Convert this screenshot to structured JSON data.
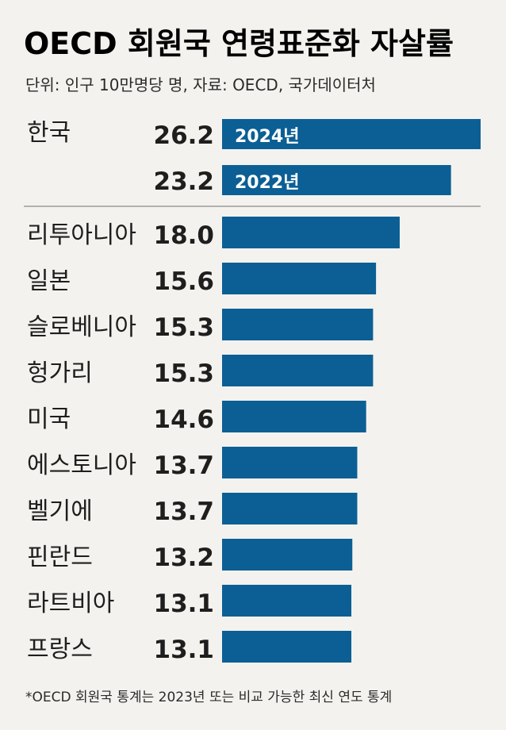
{
  "header": {
    "title": "OECD 회원국 연령표준화 자살률",
    "subtitle": "단위: 인구 10만명당 명, 자료: OECD, 국가데이터처"
  },
  "footnote": "*OECD 회원국 통계는 2023년 또는 비교 가능한 최신 연도 통계",
  "colors": {
    "bar": "#0b5f95",
    "background": "#f3f2ee",
    "divider": "#8a8a8a"
  },
  "chart_data": {
    "type": "bar",
    "orientation": "horizontal",
    "title": "OECD 회원국 연령표준화 자살률",
    "subtitle": "단위: 인구 10만명당 명, 자료: OECD, 국가데이터처",
    "unit": "인구 10만명당 명",
    "xlim": [
      0,
      27
    ],
    "grid": false,
    "highlight": {
      "country": "한국",
      "entries": [
        {
          "year": "2024년",
          "value": 26.2
        },
        {
          "year": "2022년",
          "value": 23.2
        }
      ]
    },
    "categories": [
      "리투아니아",
      "일본",
      "슬로베니아",
      "헝가리",
      "미국",
      "에스토니아",
      "벨기에",
      "핀란드",
      "라트비아",
      "프랑스"
    ],
    "values": [
      18.0,
      15.6,
      15.3,
      15.3,
      14.6,
      13.7,
      13.7,
      13.2,
      13.1,
      13.1
    ]
  }
}
